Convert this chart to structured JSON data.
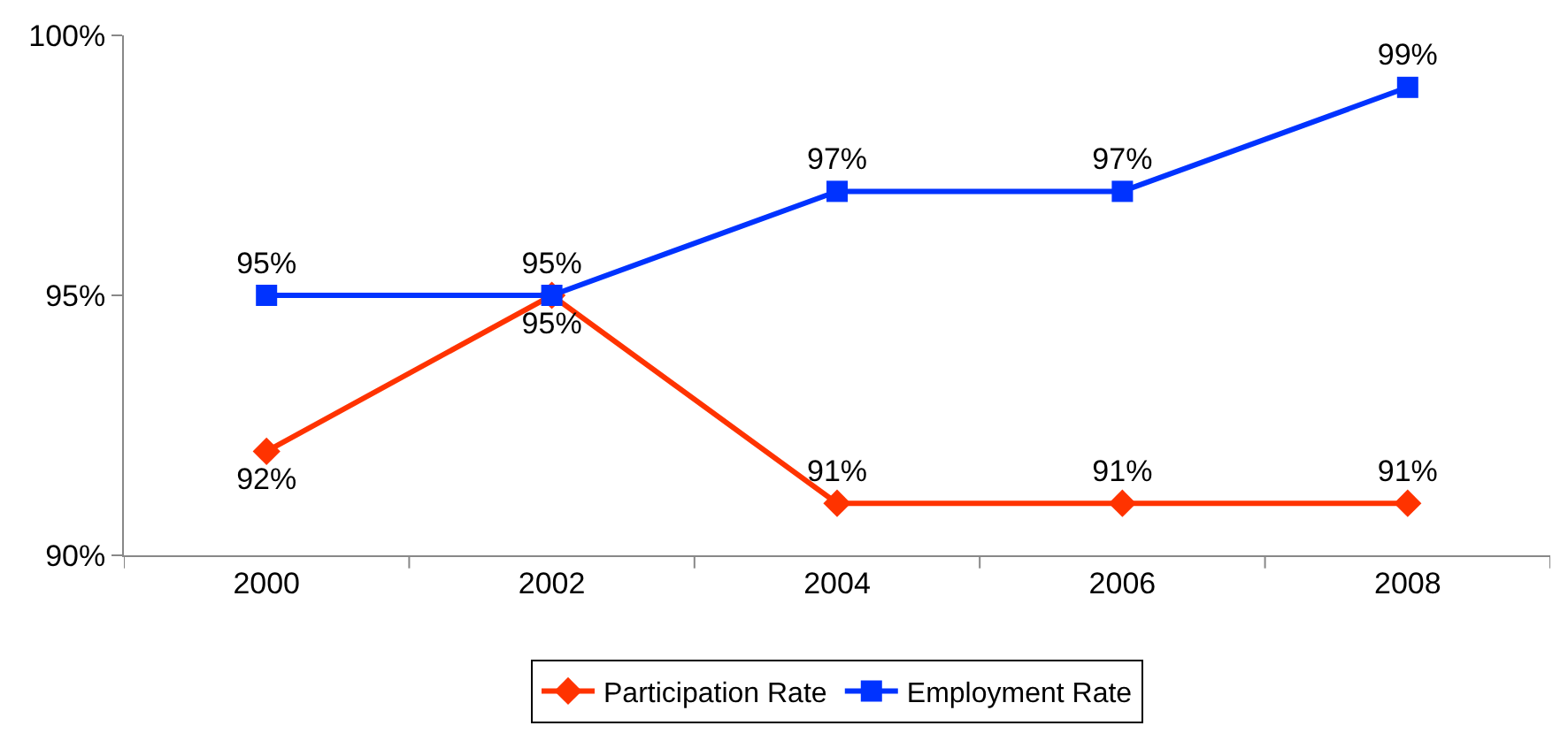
{
  "chart_data": {
    "type": "line",
    "categories": [
      "2000",
      "2002",
      "2004",
      "2006",
      "2008"
    ],
    "ylim": [
      90,
      100
    ],
    "yticks": [
      {
        "value": 90,
        "label": "90%"
      },
      {
        "value": 95,
        "label": "95%"
      },
      {
        "value": 100,
        "label": "100%"
      }
    ],
    "series": [
      {
        "name": "Participation Rate",
        "color": "#ff3300",
        "marker": "diamond",
        "values": [
          92,
          95,
          91,
          91,
          91
        ],
        "value_labels": [
          "92%",
          "95%",
          "91%",
          "91%",
          "91%"
        ]
      },
      {
        "name": "Employment Rate",
        "color": "#0033ff",
        "marker": "square",
        "values": [
          95,
          95,
          97,
          97,
          99
        ],
        "value_labels": [
          "95%",
          "95%",
          "97%",
          "97%",
          "99%"
        ]
      }
    ],
    "legend": "bottom",
    "line_style": "solid"
  }
}
